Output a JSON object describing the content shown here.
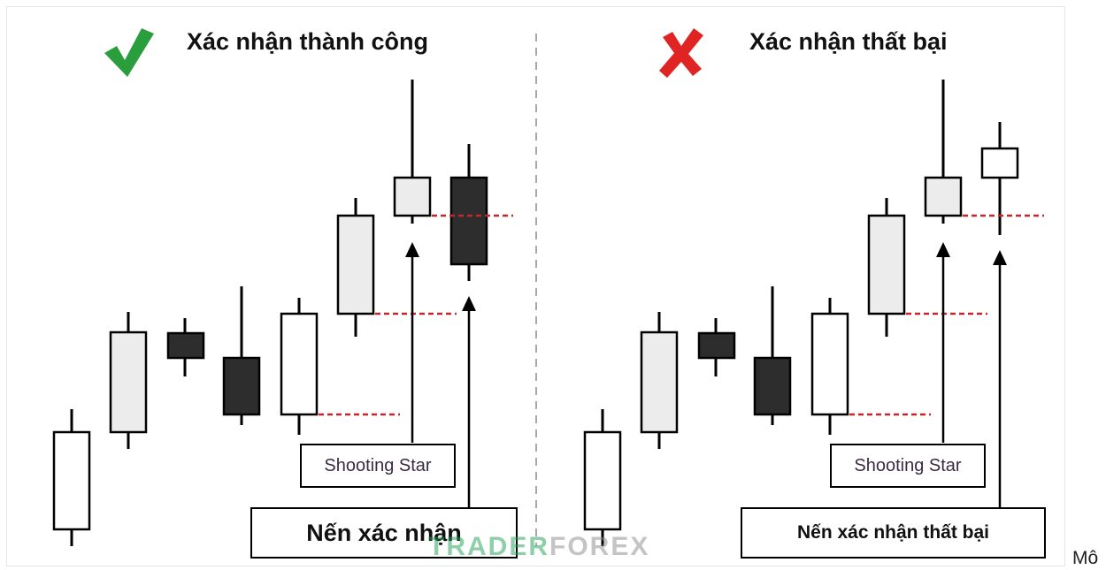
{
  "panels": {
    "left": {
      "title": "Xác nhận thành công",
      "status_icon": "check-icon",
      "shooting_star_label": "Shooting Star",
      "confirm_label": "Nến xác nhận"
    },
    "right": {
      "title": "Xác nhận thất bại",
      "status_icon": "cross-icon",
      "shooting_star_label": "Shooting Star",
      "confirm_label": "Nến xác nhận thất bại"
    }
  },
  "colors": {
    "check": "#2a9d3c",
    "cross": "#e02424",
    "candle_white": "#ffffff",
    "candle_light": "#ececec",
    "candle_dark": "#2d2d2d",
    "level_line": "#c0282d",
    "divider": "#a9a9a9"
  },
  "watermark": {
    "part1": "TRADER",
    "part2": "FOREX"
  },
  "trailing_text": "Mô"
}
